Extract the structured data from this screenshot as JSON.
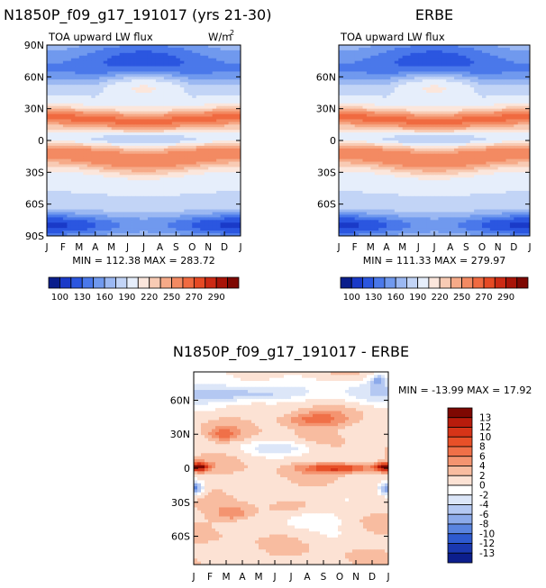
{
  "chart_data": [
    {
      "type": "heatmap",
      "title": "N1850P_f09_g17_191017 (yrs 21-30)",
      "subtitle_left": "TOA upward LW flux",
      "units": "W/m",
      "units_power": "2",
      "x_ticks": [
        "J",
        "F",
        "M",
        "A",
        "M",
        "J",
        "J",
        "A",
        "S",
        "O",
        "N",
        "D",
        "J"
      ],
      "y_ticks": [
        "90N",
        "60N",
        "30N",
        "0",
        "30S",
        "60S",
        "90S"
      ],
      "ylim": [
        -90,
        90
      ],
      "stats_text": "MIN = 112.38 MAX = 283.72",
      "colorbar": {
        "labels": [
          "100",
          "130",
          "160",
          "190",
          "220",
          "250",
          "270",
          "290"
        ],
        "colors": [
          "#0a1e8c",
          "#1a3ac8",
          "#2b56e0",
          "#4a78ea",
          "#7099ee",
          "#9bb8f2",
          "#c2d4f6",
          "#e6eefb",
          "#fbe6dc",
          "#f8cbb4",
          "#f6aa88",
          "#f38a62",
          "#f06a40",
          "#e64a24",
          "#cc2a14",
          "#a81408",
          "#7e0802"
        ]
      },
      "zonal_profile": [
        [
          -90,
          118
        ],
        [
          -75,
          140
        ],
        [
          -60,
          175
        ],
        [
          -45,
          225
        ],
        [
          -30,
          245
        ],
        [
          -15,
          255
        ],
        [
          0,
          228
        ],
        [
          15,
          255
        ],
        [
          30,
          250
        ],
        [
          45,
          220
        ],
        [
          60,
          195
        ],
        [
          75,
          170
        ],
        [
          90,
          150
        ]
      ]
    },
    {
      "type": "heatmap",
      "title": "ERBE",
      "subtitle_left": "TOA upward LW flux",
      "x_ticks": [
        "J",
        "F",
        "M",
        "A",
        "M",
        "J",
        "J",
        "A",
        "S",
        "O",
        "N",
        "D",
        "J"
      ],
      "y_ticks": [
        "60N",
        "30N",
        "0",
        "30S",
        "60S"
      ],
      "stats_text": "MIN = 111.33 MAX = 279.97",
      "colorbar": {
        "labels": [
          "100",
          "130",
          "160",
          "190",
          "220",
          "250",
          "270",
          "290"
        ],
        "colors": [
          "#0a1e8c",
          "#1a3ac8",
          "#2b56e0",
          "#4a78ea",
          "#7099ee",
          "#9bb8f2",
          "#c2d4f6",
          "#e6eefb",
          "#fbe6dc",
          "#f8cbb4",
          "#f6aa88",
          "#f38a62",
          "#f06a40",
          "#e64a24",
          "#cc2a14",
          "#a81408",
          "#7e0802"
        ]
      }
    },
    {
      "type": "heatmap",
      "title": "N1850P_f09_g17_191017 - ERBE",
      "x_ticks": [
        "J",
        "F",
        "M",
        "A",
        "M",
        "J",
        "J",
        "A",
        "S",
        "O",
        "N",
        "D",
        "J"
      ],
      "y_ticks": [
        "60N",
        "30N",
        "0",
        "30S",
        "60S"
      ],
      "stats_text": "MIN = -13.99 MAX =  17.92",
      "colorbar": {
        "labels": [
          "13",
          "12",
          "10",
          "8",
          "6",
          "4",
          "2",
          "0",
          "-2",
          "-4",
          "-6",
          "-8",
          "-10",
          "-12",
          "-13"
        ],
        "colors": [
          "#7e0802",
          "#b81c0c",
          "#d63418",
          "#e85028",
          "#f07048",
          "#f49470",
          "#f8bca0",
          "#fce2d4",
          "#ffffff",
          "#dce6f8",
          "#b4c8f2",
          "#8caaea",
          "#5a84e0",
          "#2e5ad0",
          "#1a38b0",
          "#0c1e8c"
        ]
      }
    }
  ]
}
